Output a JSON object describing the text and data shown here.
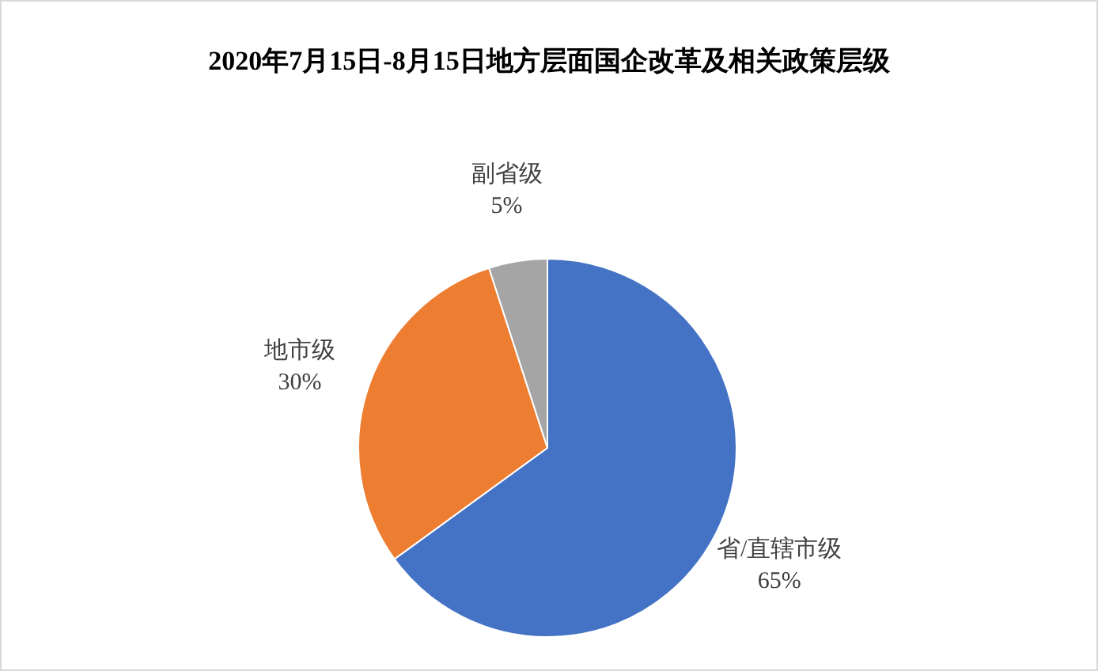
{
  "chart_data": {
    "type": "pie",
    "title": "2020年7月15日-8月15日地方层面国企改革及相关政策层级",
    "categories": [
      "省/直辖市级",
      "地市级",
      "副省级"
    ],
    "values": [
      65,
      30,
      5
    ],
    "value_labels": [
      "65%",
      "30%",
      "5%"
    ],
    "colors": [
      "#4472c4",
      "#ed7d31",
      "#a5a5a5"
    ],
    "legend": false
  }
}
